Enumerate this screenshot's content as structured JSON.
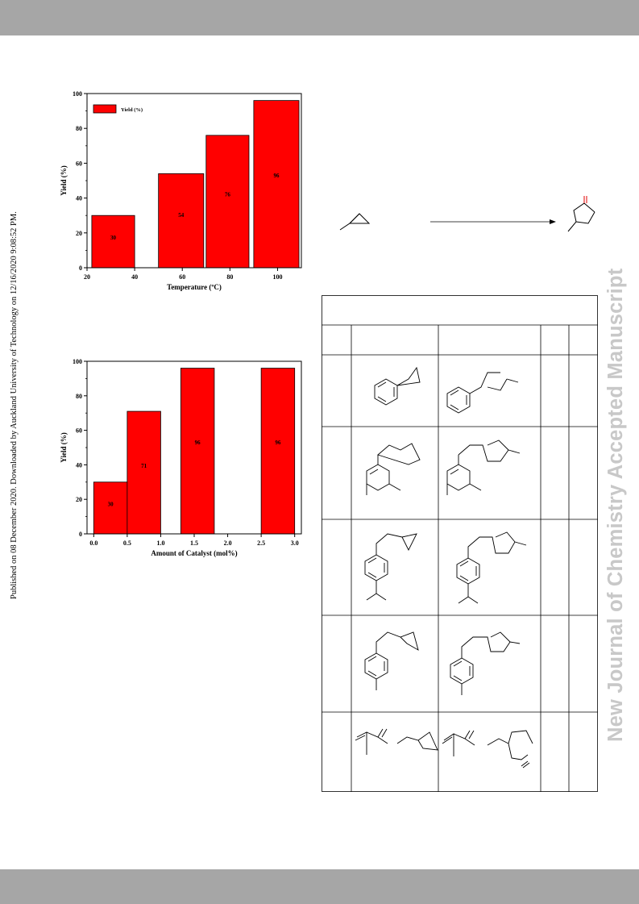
{
  "page": {
    "side_note": "Published on 08 December 2020. Downloaded by Auckland University of Technology on 12/16/2020 9:08:52 PM.",
    "watermark": "New Journal of Chemistry Accepted Manuscript"
  },
  "chart_data": [
    {
      "type": "bar",
      "title": "",
      "xlabel": "Temperature (ºC)",
      "ylabel": "Yield (%)",
      "legend": [
        "Yield (%)"
      ],
      "legend_position": "top-left",
      "x_ticks": [
        "20",
        "40",
        "60",
        "80",
        "100"
      ],
      "y_ticks": [
        "0",
        "20",
        "40",
        "60",
        "80",
        "100"
      ],
      "xlim": [
        20,
        110
      ],
      "ylim": [
        0,
        100
      ],
      "bars": [
        {
          "x0": 22,
          "x1": 40,
          "value": 30,
          "label": "30"
        },
        {
          "x0": 50,
          "x1": 69,
          "value": 54,
          "label": "54"
        },
        {
          "x0": 70,
          "x1": 88,
          "value": 76,
          "label": "76"
        },
        {
          "x0": 90,
          "x1": 109,
          "value": 96,
          "label": "96"
        }
      ],
      "bar_color": "#ff0000"
    },
    {
      "type": "bar",
      "title": "",
      "xlabel": "Amount of Catalyst (mol%)",
      "ylabel": "Yield (%)",
      "x_ticks": [
        "0.0",
        "0.5",
        "1.0",
        "1.5",
        "2.0",
        "2.5",
        "3.0"
      ],
      "y_ticks": [
        "0",
        "20",
        "40",
        "60",
        "80",
        "100"
      ],
      "xlim": [
        -0.1,
        3.1
      ],
      "ylim": [
        0,
        100
      ],
      "bars": [
        {
          "x0": 0.0,
          "x1": 0.5,
          "value": 30,
          "label": "30"
        },
        {
          "x0": 0.5,
          "x1": 1.0,
          "value": 71,
          "label": "71"
        },
        {
          "x0": 1.3,
          "x1": 1.8,
          "value": 96,
          "label": "96"
        },
        {
          "x0": 2.5,
          "x1": 3.0,
          "value": 96,
          "label": "96"
        }
      ],
      "bar_color": "#ff0000"
    }
  ]
}
